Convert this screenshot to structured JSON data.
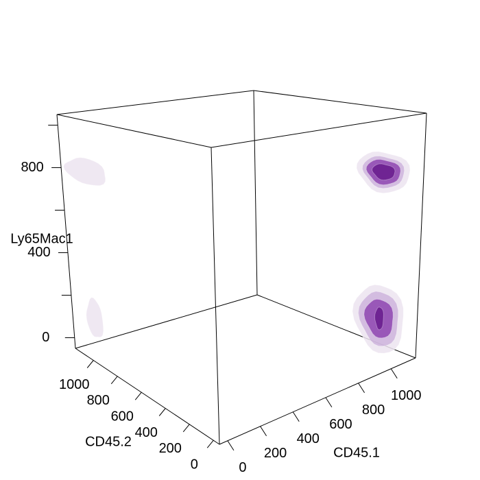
{
  "chart_data": {
    "type": "3d-density-contour",
    "title": "",
    "axes": {
      "x": {
        "label": "CD45.1",
        "ticks": [
          0,
          200,
          400,
          600,
          800,
          1000
        ],
        "range": [
          -50,
          1150
        ]
      },
      "y": {
        "label": "CD45.2",
        "ticks": [
          0,
          200,
          400,
          600,
          800,
          1000
        ],
        "range": [
          -50,
          1150
        ]
      },
      "z": {
        "label": "Ly65Mac1",
        "ticks": [
          0,
          400,
          800
        ],
        "range": [
          -50,
          1050
        ]
      }
    },
    "colors": {
      "level_low": "#ece4f0",
      "level_mid": "#c7a9d8",
      "level_high": "#8b3fae",
      "level_core": "#6a1f8f",
      "box": "#000000"
    },
    "clusters": [
      {
        "name": "",
        "center": {
          "CD45.1": 1000,
          "CD45.2": 50,
          "Ly65Mac1": 800
        },
        "levels": [
          {
            "level": "low",
            "rx": 70,
            "ry": 70,
            "rz": 90
          },
          {
            "level": "mid",
            "rx": 55,
            "ry": 55,
            "rz": 70
          },
          {
            "level": "high",
            "rx": 45,
            "ry": 45,
            "rz": 55
          },
          {
            "level": "core",
            "rx": 30,
            "ry": 30,
            "rz": 35
          }
        ]
      },
      {
        "name": "",
        "center": {
          "CD45.1": 1000,
          "CD45.2": 50,
          "Ly65Mac1": 150
        },
        "levels": [
          {
            "level": "low",
            "rx": 70,
            "ry": 70,
            "rz": 150
          },
          {
            "level": "mid",
            "rx": 55,
            "ry": 55,
            "rz": 120
          },
          {
            "level": "high",
            "rx": 40,
            "ry": 40,
            "rz": 85
          },
          {
            "level": "core",
            "rx": 12,
            "ry": 12,
            "rz": 50
          }
        ]
      },
      {
        "name": "",
        "center": {
          "CD45.1": 0,
          "CD45.2": 1020,
          "Ly65Mac1": 800
        },
        "levels": [
          {
            "level": "low",
            "rx": 60,
            "ry": 60,
            "rz": 60
          }
        ]
      },
      {
        "name": "",
        "center": {
          "CD45.1": 0,
          "CD45.2": 1030,
          "Ly65Mac1": 120
        },
        "levels": [
          {
            "level": "low",
            "rx": 25,
            "ry": 25,
            "rz": 90
          }
        ]
      }
    ]
  }
}
